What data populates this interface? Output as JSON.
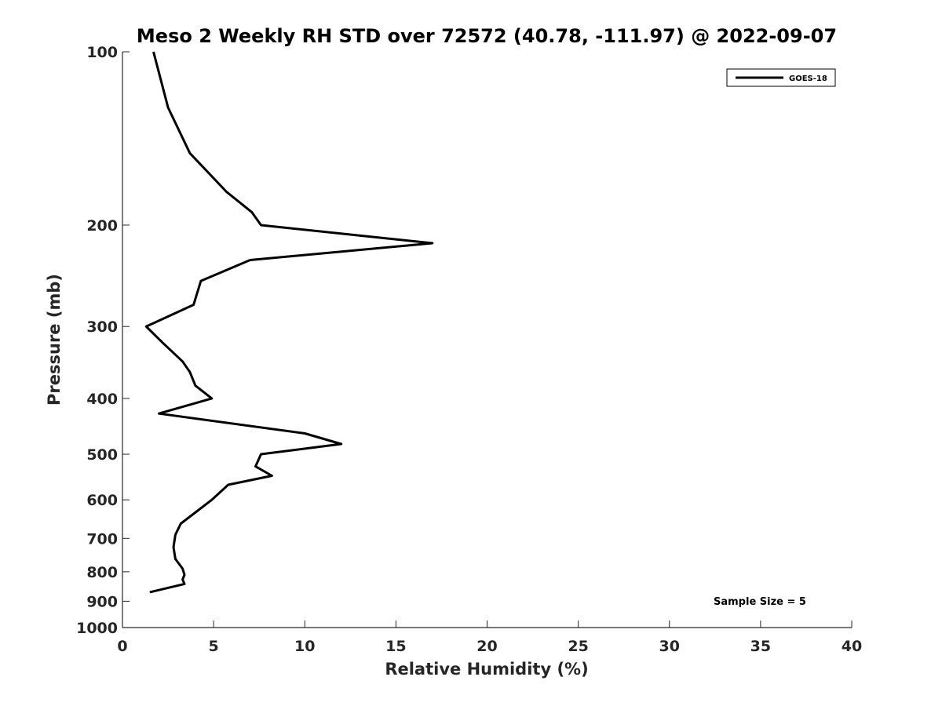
{
  "chart_data": {
    "type": "line",
    "title": "Meso 2 Weekly RH STD over 72572 (40.78, -111.97) @ 2022-09-07",
    "xlabel": "Relative Humidity (%)",
    "ylabel": "Pressure (mb)",
    "xlim": [
      0,
      40
    ],
    "ylim": [
      100,
      1000
    ],
    "y_scale": "log",
    "y_reversed": true,
    "x_ticks": [
      "0",
      "5",
      "10",
      "15",
      "20",
      "25",
      "30",
      "35",
      "40"
    ],
    "y_ticks": [
      "100",
      "200",
      "300",
      "400",
      "500",
      "600",
      "700",
      "800",
      "900",
      "1000"
    ],
    "grid": false,
    "legend_position": "top-right",
    "series": [
      {
        "name": "GOES-18",
        "color": "#000000",
        "points": [
          {
            "x": 1.7,
            "y": 100
          },
          {
            "x": 2.5,
            "y": 125
          },
          {
            "x": 3.7,
            "y": 150
          },
          {
            "x": 5.7,
            "y": 175
          },
          {
            "x": 7.1,
            "y": 190
          },
          {
            "x": 7.6,
            "y": 200
          },
          {
            "x": 17.0,
            "y": 215
          },
          {
            "x": 7.0,
            "y": 230
          },
          {
            "x": 4.3,
            "y": 250
          },
          {
            "x": 3.9,
            "y": 275
          },
          {
            "x": 1.3,
            "y": 300
          },
          {
            "x": 2.2,
            "y": 320
          },
          {
            "x": 3.3,
            "y": 345
          },
          {
            "x": 3.7,
            "y": 360
          },
          {
            "x": 4.0,
            "y": 380
          },
          {
            "x": 4.9,
            "y": 400
          },
          {
            "x": 2.0,
            "y": 425
          },
          {
            "x": 10.0,
            "y": 460
          },
          {
            "x": 12.0,
            "y": 480
          },
          {
            "x": 7.6,
            "y": 500
          },
          {
            "x": 7.3,
            "y": 525
          },
          {
            "x": 8.2,
            "y": 545
          },
          {
            "x": 5.8,
            "y": 565
          },
          {
            "x": 4.9,
            "y": 600
          },
          {
            "x": 3.2,
            "y": 660
          },
          {
            "x": 2.9,
            "y": 690
          },
          {
            "x": 2.8,
            "y": 725
          },
          {
            "x": 2.9,
            "y": 760
          },
          {
            "x": 3.3,
            "y": 790
          },
          {
            "x": 3.4,
            "y": 810
          },
          {
            "x": 3.3,
            "y": 825
          },
          {
            "x": 3.4,
            "y": 840
          },
          {
            "x": 1.5,
            "y": 868
          }
        ]
      }
    ],
    "annotations": [
      "Sample Size = 5"
    ]
  }
}
